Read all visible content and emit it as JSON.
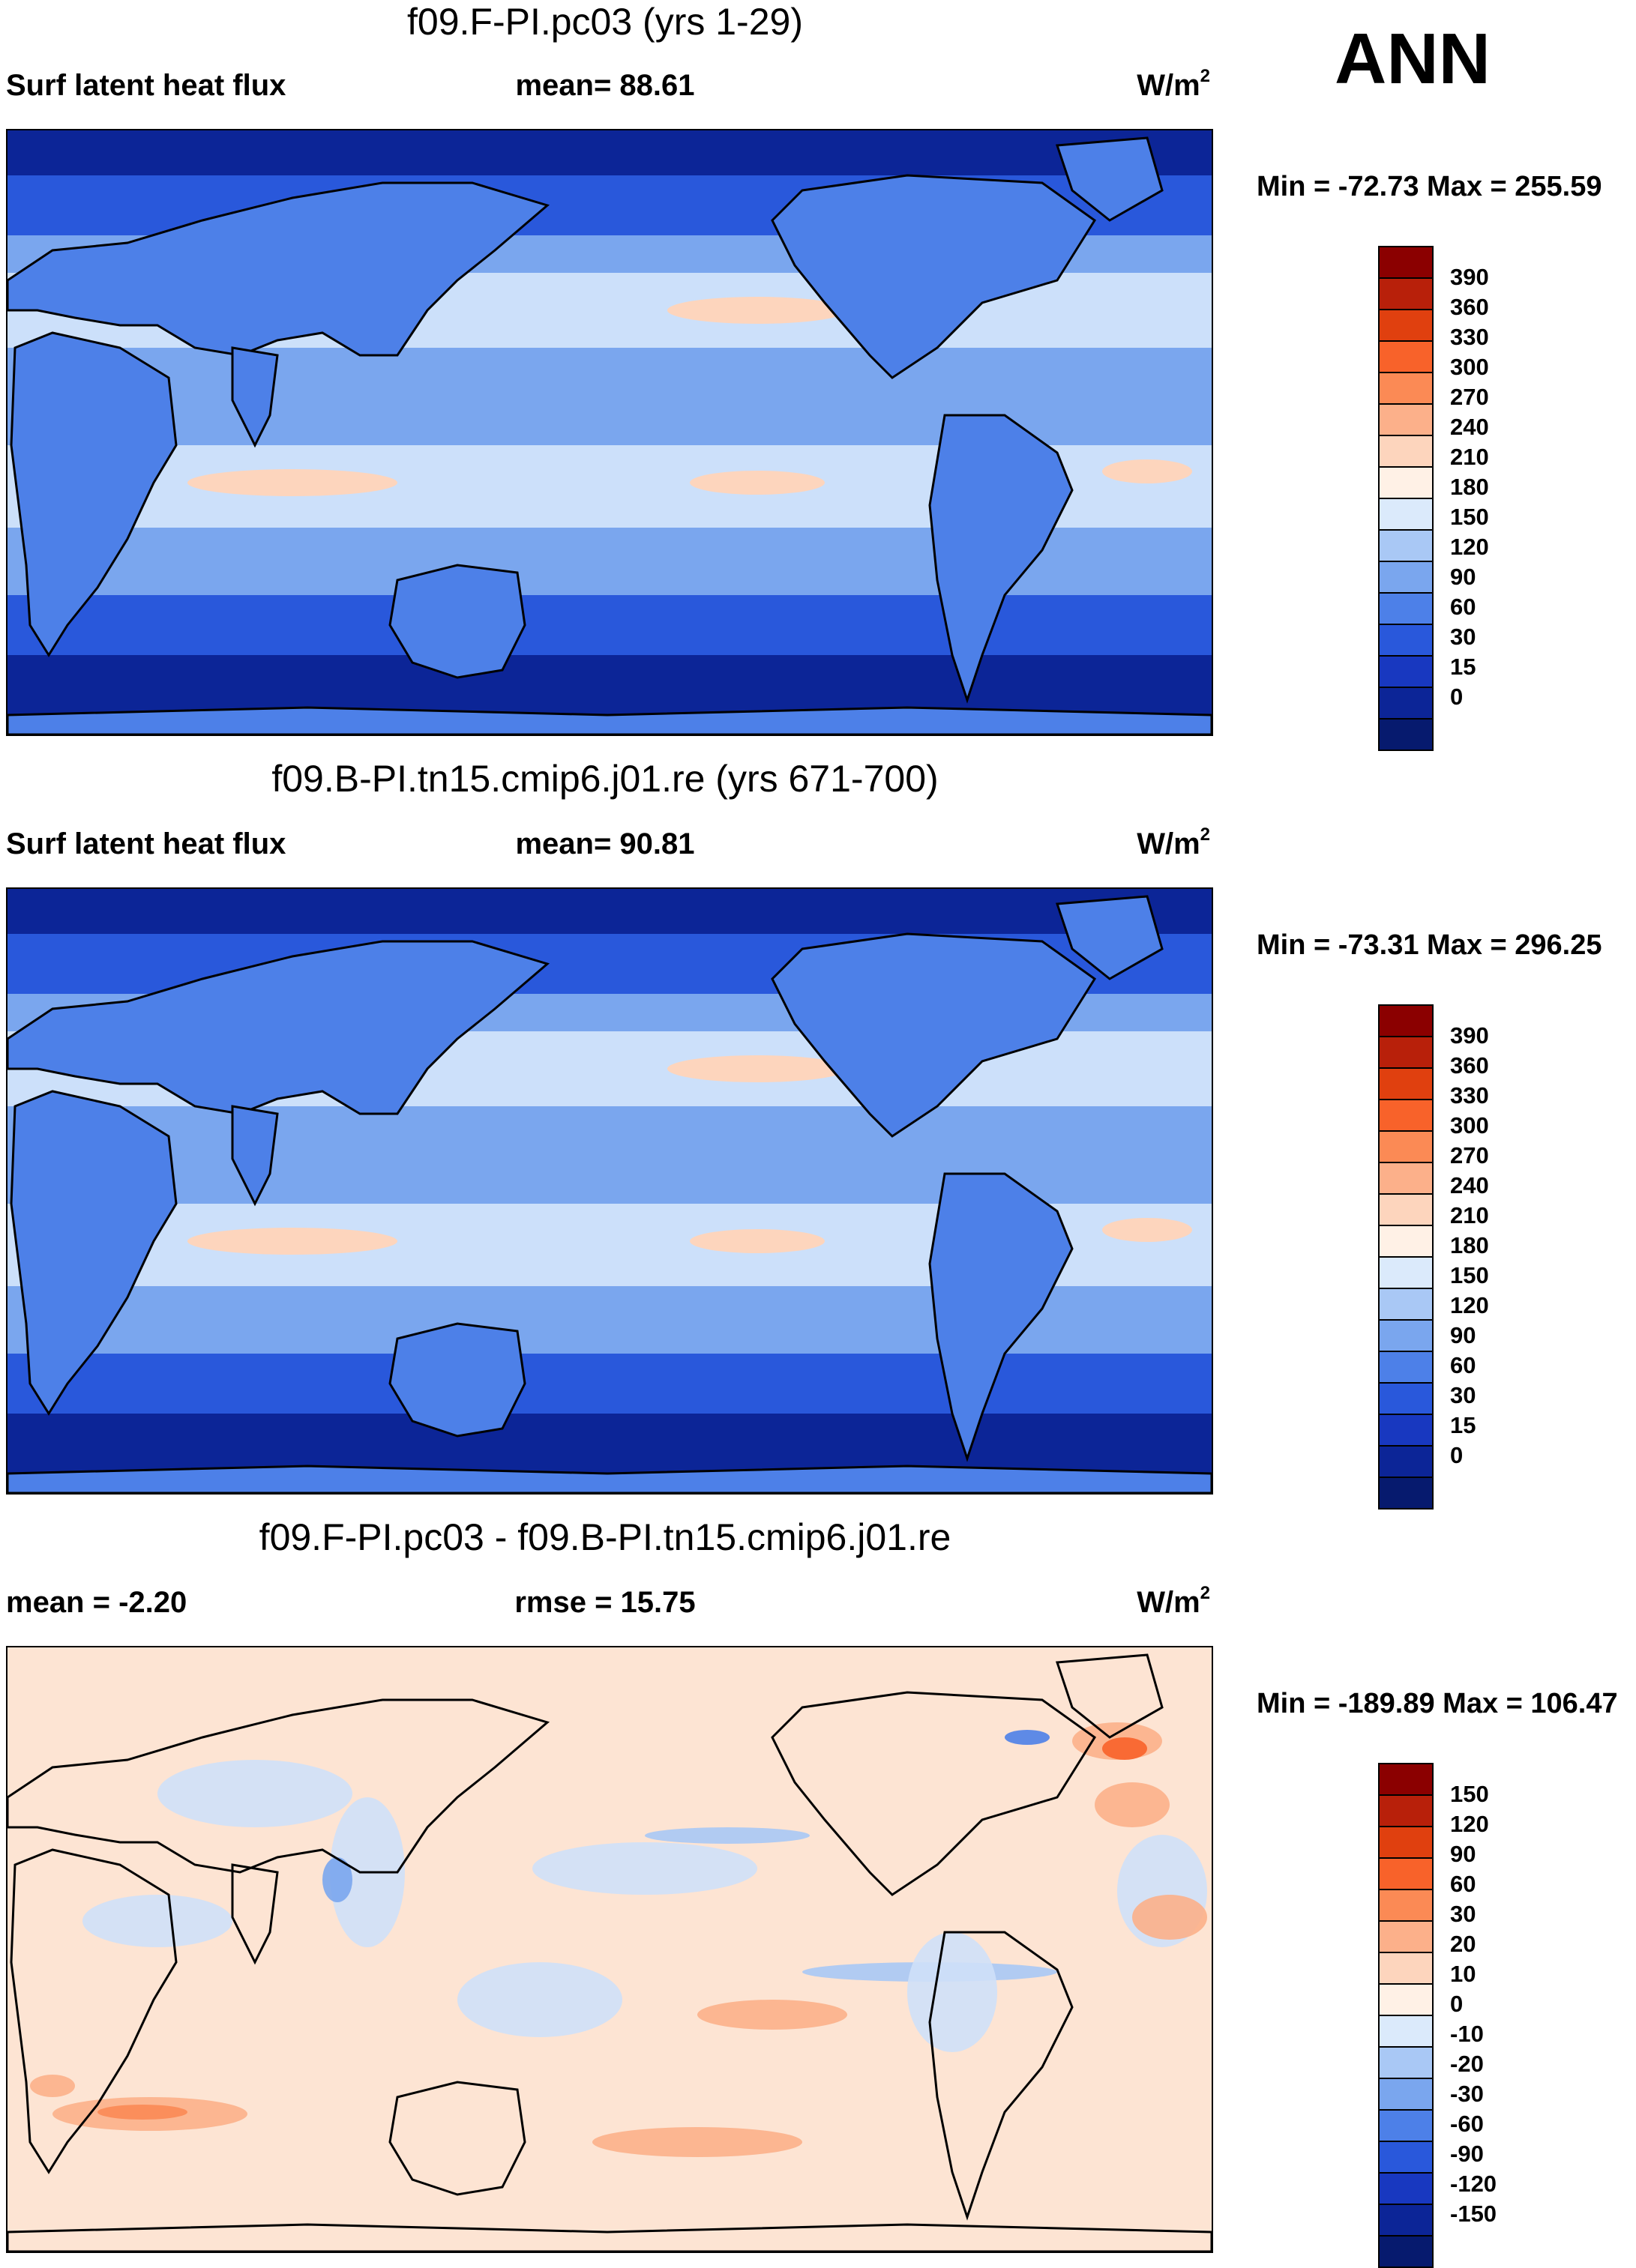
{
  "season": "ANN",
  "panels": [
    {
      "title": "f09.F-PI.pc03 (yrs 1-29)",
      "left_label": "Surf latent heat flux",
      "mid_label": "mean=  88.61",
      "units_base": "W/m",
      "units_exp": "2",
      "minmax": "Min = -72.73 Max = 255.59",
      "map_theme": "absolute",
      "colorbar": {
        "levels": [
          "390",
          "360",
          "330",
          "300",
          "270",
          "240",
          "210",
          "180",
          "150",
          "120",
          "90",
          "60",
          "30",
          "15",
          "0"
        ],
        "colors": [
          "#8b0000",
          "#b8200a",
          "#e0400f",
          "#f8622a",
          "#fb8a55",
          "#fcb08a",
          "#fdd5bd",
          "#fff1e6",
          "#dbeafb",
          "#a9c8f5",
          "#7aa6ee",
          "#4d80e8",
          "#2958db",
          "#1838c0",
          "#0c2597",
          "#061a6e"
        ]
      }
    },
    {
      "title": "f09.B-PI.tn15.cmip6.j01.re (yrs 671-700)",
      "left_label": "Surf latent heat flux",
      "mid_label": "mean=  90.81",
      "units_base": "W/m",
      "units_exp": "2",
      "minmax": "Min = -73.31 Max = 296.25",
      "map_theme": "absolute",
      "colorbar": {
        "levels": [
          "390",
          "360",
          "330",
          "300",
          "270",
          "240",
          "210",
          "180",
          "150",
          "120",
          "90",
          "60",
          "30",
          "15",
          "0"
        ],
        "colors": [
          "#8b0000",
          "#b8200a",
          "#e0400f",
          "#f8622a",
          "#fb8a55",
          "#fcb08a",
          "#fdd5bd",
          "#fff1e6",
          "#dbeafb",
          "#a9c8f5",
          "#7aa6ee",
          "#4d80e8",
          "#2958db",
          "#1838c0",
          "#0c2597",
          "#061a6e"
        ]
      }
    },
    {
      "title": "f09.F-PI.pc03 - f09.B-PI.tn15.cmip6.j01.re",
      "left_label": "mean =  -2.20",
      "mid_label": "rmse =  15.75",
      "units_base": "W/m",
      "units_exp": "2",
      "minmax": "Min = -189.89 Max = 106.47",
      "map_theme": "difference",
      "colorbar": {
        "levels": [
          "150",
          "120",
          "90",
          "60",
          "30",
          "20",
          "10",
          "0",
          "-10",
          "-20",
          "-30",
          "-60",
          "-90",
          "-120",
          "-150"
        ],
        "colors": [
          "#8b0000",
          "#b8200a",
          "#e0400f",
          "#f8622a",
          "#fb8a55",
          "#fcb08a",
          "#fdd5bd",
          "#fff1e6",
          "#dbeafb",
          "#a9c8f5",
          "#7aa6ee",
          "#4d80e8",
          "#2958db",
          "#1838c0",
          "#0c2597",
          "#061a6e"
        ]
      }
    }
  ],
  "colors": {
    "ocean_deep": "#0c2597",
    "ocean_mid": "#2958db",
    "ocean_light": "#7aa6ee",
    "band_pale": "#dbeafb",
    "band_warm": "#fdd5bd",
    "land_absolute": "#4d80e8",
    "diff_bg_pos": "#fde4d3",
    "diff_bg_neg": "#cfe0f8",
    "coast": "#000000"
  }
}
